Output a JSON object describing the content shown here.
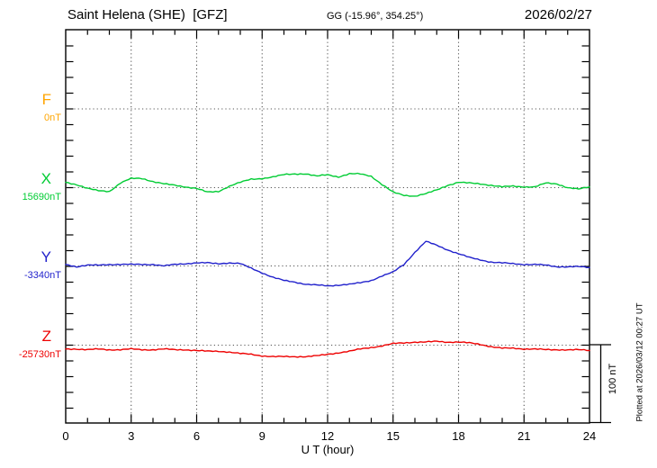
{
  "header": {
    "station_title": "Saint Helena (SHE)  [GFZ]",
    "coordinates": "GG (-15.96°, 354.25°)",
    "date": "2026/02/27"
  },
  "axis": {
    "x_label": "U T (hour)",
    "x_ticks": [
      "0",
      "3",
      "6",
      "9",
      "12",
      "15",
      "18",
      "21",
      "24"
    ]
  },
  "scale_bar": {
    "label": "100 nT",
    "nT": 100
  },
  "footer_note": "Plotted at 2026/03/12 00:27 UT",
  "components": [
    {
      "letter": "F",
      "base_label": "0nT",
      "color": "#FFA500"
    },
    {
      "letter": "X",
      "base_label": "15690nT",
      "color": "#00CC33"
    },
    {
      "letter": "Y",
      "base_label": "-3340nT",
      "color": "#2222CC"
    },
    {
      "letter": "Z",
      "base_label": "-25730nT",
      "color": "#EE0000"
    }
  ],
  "chart_data": {
    "type": "line",
    "title": "Saint Helena (SHE) [GFZ] magnetogram 2026/02/27",
    "xlabel": "U T (hour)",
    "x_range": [
      0,
      24
    ],
    "x_ticks": [
      0,
      3,
      6,
      9,
      12,
      15,
      18,
      21,
      24
    ],
    "x_gridlines_hours": [
      3,
      6,
      9,
      12,
      15,
      18,
      21
    ],
    "grid": "dotted",
    "scale_nT_per_division": 100,
    "hours_start": 0,
    "hours_step": 0.5,
    "series": [
      {
        "name": "F",
        "base_nT": 0,
        "base_label": "0nT",
        "color": "#FFA500",
        "offsets_nT": []
      },
      {
        "name": "X",
        "base_nT": 15690,
        "base_label": "15690nT",
        "color": "#00CC33",
        "offsets_nT": [
          7,
          4,
          -1,
          -4,
          -5,
          6,
          12,
          12,
          8,
          5,
          3,
          1,
          -1,
          -6,
          -5,
          2,
          7,
          11,
          12,
          14,
          17,
          18,
          18,
          15,
          17,
          14,
          18,
          18,
          15,
          4,
          -6,
          -10,
          -11,
          -8,
          -3,
          3,
          7,
          6,
          5,
          3,
          1,
          2,
          1,
          1,
          6,
          5,
          0,
          -2,
          1
        ]
      },
      {
        "name": "Y",
        "base_nT": -3340,
        "base_label": "-3340nT",
        "color": "#2222CC",
        "offsets_nT": [
          2,
          -1,
          1,
          1,
          2,
          2,
          2,
          2,
          2,
          0,
          2,
          3,
          4,
          4,
          3,
          4,
          3,
          -3,
          -9,
          -15,
          -19,
          -21,
          -24,
          -25,
          -26,
          -25,
          -24,
          -22,
          -19,
          -13,
          -8,
          2,
          18,
          32,
          27,
          21,
          16,
          11,
          8,
          5,
          4,
          3,
          2,
          2,
          1,
          -1,
          -1,
          -1,
          -2
        ]
      },
      {
        "name": "Z",
        "base_nT": -25730,
        "base_label": "-25730nT",
        "color": "#EE0000",
        "offsets_nT": [
          -5,
          -5,
          -6,
          -5,
          -6,
          -6,
          -5,
          -6,
          -6,
          -5,
          -6,
          -6,
          -7,
          -8,
          -8,
          -9,
          -11,
          -12,
          -14,
          -15,
          -15,
          -15,
          -15,
          -14,
          -12,
          -10,
          -8,
          -5,
          -3,
          -1,
          2,
          3,
          4,
          4,
          5,
          4,
          4,
          3,
          1,
          -2,
          -4,
          -4,
          -5,
          -5,
          -6,
          -6,
          -6,
          -6,
          -7
        ]
      }
    ]
  }
}
